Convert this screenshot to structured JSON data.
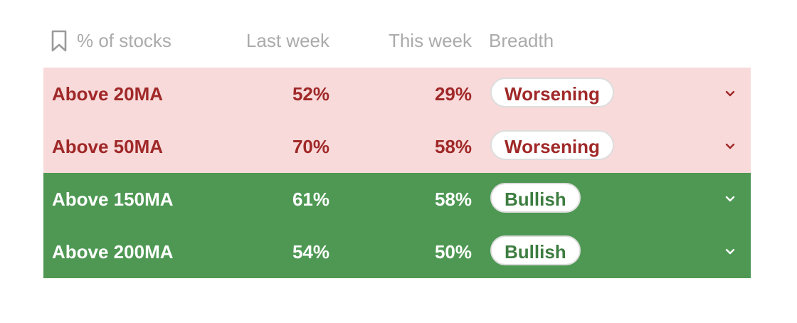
{
  "header": {
    "metric": "% of stocks",
    "last_week": "Last week",
    "this_week": "This week",
    "breadth": "Breadth"
  },
  "rows": [
    {
      "label": "Above 20MA",
      "last": "52%",
      "this": "29%",
      "breadth": "Worsening",
      "tone": "red"
    },
    {
      "label": "Above 50MA",
      "last": "70%",
      "this": "58%",
      "breadth": "Worsening",
      "tone": "red"
    },
    {
      "label": "Above 150MA",
      "last": "61%",
      "this": "58%",
      "breadth": "Bullish",
      "tone": "green"
    },
    {
      "label": "Above 200MA",
      "last": "54%",
      "this": "50%",
      "breadth": "Bullish",
      "tone": "green"
    }
  ],
  "colors": {
    "worsening_bg": "#f8dada",
    "worsening_text": "#a02828",
    "bullish_bg": "#4e9853",
    "bullish_text": "#3d7d40"
  },
  "icons": {
    "bookmark": "bookmark-icon",
    "expand": "chevron-down-icon"
  }
}
